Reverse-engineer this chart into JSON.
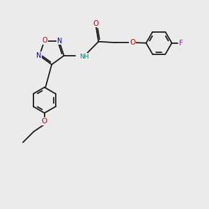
{
  "background_color": "#ebebeb",
  "bond_color": "#1a1a1a",
  "bond_width": 1.3,
  "atom_colors": {
    "N": "#0000cc",
    "O": "#cc0000",
    "F": "#cc00cc",
    "C": "#1a1a1a",
    "H": "#008080"
  },
  "font_size": 7.0,
  "ring_r": 0.62,
  "oxadiazole_r": 0.6
}
